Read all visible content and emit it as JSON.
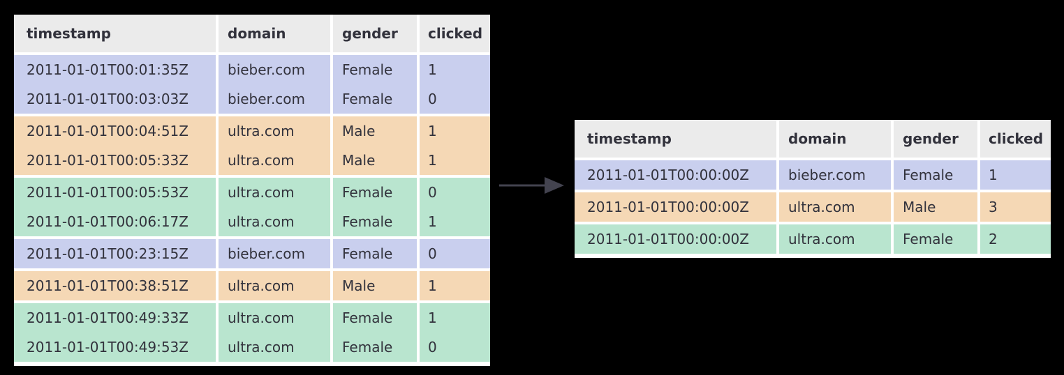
{
  "colors": {
    "header_bg": "#ebebeb",
    "purple": "#c9cfee",
    "orange": "#f5d8b5",
    "green": "#b9e5cf",
    "arrow": "#43434f",
    "panel_bg": "#ffffff",
    "canvas_bg": "#000000"
  },
  "arrow_icon": "right-arrow",
  "tables": [
    {
      "name": "input-table",
      "columns": [
        "timestamp",
        "domain",
        "gender",
        "clicked"
      ],
      "rows": [
        {
          "cells": [
            "2011-01-01T00:01:35Z",
            "bieber.com",
            "Female",
            "1"
          ],
          "color": "purple"
        },
        {
          "cells": [
            "2011-01-01T00:03:03Z",
            "bieber.com",
            "Female",
            "0"
          ],
          "color": "purple"
        },
        {
          "cells": [
            "2011-01-01T00:04:51Z",
            "ultra.com",
            "Male",
            "1"
          ],
          "color": "orange"
        },
        {
          "cells": [
            "2011-01-01T00:05:33Z",
            "ultra.com",
            "Male",
            "1"
          ],
          "color": "orange"
        },
        {
          "cells": [
            "2011-01-01T00:05:53Z",
            "ultra.com",
            "Female",
            "0"
          ],
          "color": "green"
        },
        {
          "cells": [
            "2011-01-01T00:06:17Z",
            "ultra.com",
            "Female",
            "1"
          ],
          "color": "green"
        },
        {
          "cells": [
            "2011-01-01T00:23:15Z",
            "bieber.com",
            "Female",
            "0"
          ],
          "color": "purple"
        },
        {
          "cells": [
            "2011-01-01T00:38:51Z",
            "ultra.com",
            "Male",
            "1"
          ],
          "color": "orange"
        },
        {
          "cells": [
            "2011-01-01T00:49:33Z",
            "ultra.com",
            "Female",
            "1"
          ],
          "color": "green"
        },
        {
          "cells": [
            "2011-01-01T00:49:53Z",
            "ultra.com",
            "Female",
            "0"
          ],
          "color": "green"
        }
      ]
    },
    {
      "name": "output-table",
      "columns": [
        "timestamp",
        "domain",
        "gender",
        "clicked"
      ],
      "rows": [
        {
          "cells": [
            "2011-01-01T00:00:00Z",
            "bieber.com",
            "Female",
            "1"
          ],
          "color": "purple"
        },
        {
          "cells": [
            "2011-01-01T00:00:00Z",
            "ultra.com",
            "Male",
            "3"
          ],
          "color": "orange"
        },
        {
          "cells": [
            "2011-01-01T00:00:00Z",
            "ultra.com",
            "Female",
            "2"
          ],
          "color": "green"
        }
      ]
    }
  ]
}
